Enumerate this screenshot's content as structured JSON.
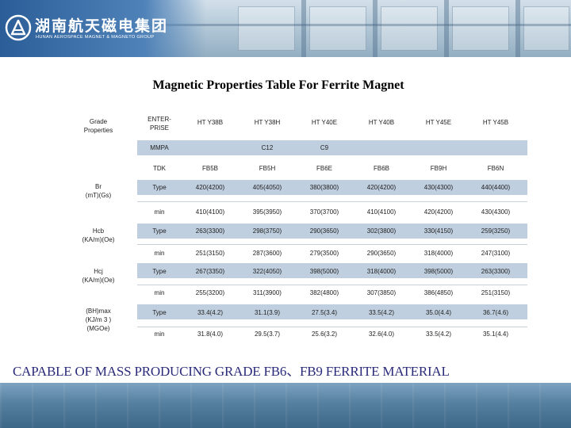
{
  "header": {
    "company_cn": "湖南航天磁电集团",
    "company_en": "HUNAN AEROSPACE MAGNET & MAGNETO GROUP"
  },
  "title": "Magnetic Properties Table For Ferrite Magnet",
  "table": {
    "corner_line1": "Grade",
    "corner_line2": "Properties",
    "enterprise_line1": "ENTER-",
    "enterprise_line2": "PRISE",
    "grades": [
      "HT Y38B",
      "HT Y38H",
      "HT Y40E",
      "HT Y40B",
      "HT Y45E",
      "HT Y45B"
    ],
    "mmpa_label": "MMPA",
    "mmpa_values": [
      "C12",
      "C9"
    ],
    "tdk_label": "TDK",
    "tdk_values": [
      "FB5B",
      "FB5H",
      "FB6E",
      "FB6B",
      "FB9H",
      "FB6N"
    ],
    "type_label": "Type",
    "min_label": "min",
    "properties": [
      {
        "name_line1": "Br",
        "name_line2": "(mT)(Gs)",
        "name_line3": "",
        "type": [
          "420(4200)",
          "405(4050)",
          "380(3800)",
          "420(4200)",
          "430(4300)",
          "440(4400)"
        ],
        "min": [
          "410(4100)",
          "395(3950)",
          "370(3700)",
          "410(4100)",
          "420(4200)",
          "430(4300)"
        ]
      },
      {
        "name_line1": "Hcb",
        "name_line2": "(KA/m)(Oe)",
        "name_line3": "",
        "type": [
          "263(3300)",
          "298(3750)",
          "290(3650)",
          "302(3800)",
          "330(4150)",
          "259(3250)"
        ],
        "min": [
          "251(3150)",
          "287(3600)",
          "279(3500)",
          "290(3650)",
          "318(4000)",
          "247(3100)"
        ]
      },
      {
        "name_line1": "Hcj",
        "name_line2": "(KA/m)(Oe)",
        "name_line3": "",
        "type": [
          "267(3350)",
          "322(4050)",
          "398(5000)",
          "318(4000)",
          "398(5000)",
          "263(3300)"
        ],
        "min": [
          "255(3200)",
          "311(3900)",
          "382(4800)",
          "307(3850)",
          "386(4850)",
          "251(3150)"
        ]
      },
      {
        "name_line1": "(BH)max",
        "name_line2": "(KJ/m 3 )",
        "name_line3": "(MGOe)",
        "type": [
          "33.4(4.2)",
          "31.1(3.9)",
          "27.5(3.4)",
          "33.5(4.2)",
          "35.0(4.4)",
          "36.7(4.6)"
        ],
        "min": [
          "31.8(4.0)",
          "29.5(3.7)",
          "25.6(3.2)",
          "32.6(4.0)",
          "33.5(4.2)",
          "35.1(4.4)"
        ]
      }
    ]
  },
  "footer": "CAPABLE OF MASS PRODUCING GRADE FB6、FB9 FERRITE MATERIAL",
  "colors": {
    "header_blue": "#2b5e98",
    "row_band": "#bfcfdf",
    "footer_text": "#2a2a7a"
  }
}
